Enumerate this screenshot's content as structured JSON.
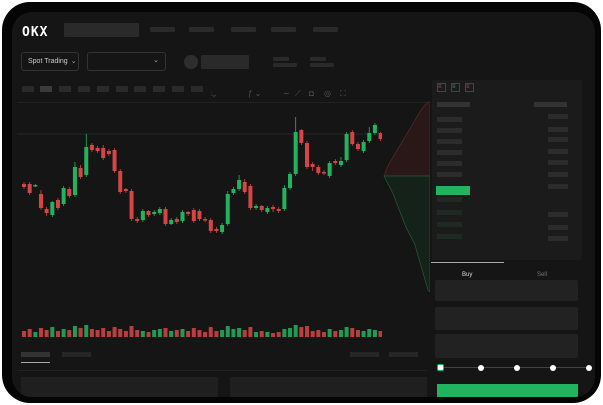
{
  "brand": {
    "logo": "OKX"
  },
  "header": {
    "market_selector": "Spot Trading",
    "market_selector_icon": "chevron-down-icon",
    "pair_selector_icon": "chevron-down-icon"
  },
  "toolbar": {
    "icons": [
      "line-tool-icon",
      "ruler-icon",
      "camera-icon",
      "settings-icon",
      "fullscreen-icon"
    ]
  },
  "orderbook": {
    "view_icons": [
      "both-sides-icon",
      "bids-only-icon",
      "asks-only-icon"
    ]
  },
  "trade": {
    "tabs": [
      {
        "label": "Buy",
        "active": true
      },
      {
        "label": "Sell",
        "active": false
      }
    ],
    "slider_percent": 0
  },
  "colors": {
    "up": "#22b35e",
    "down": "#d64545",
    "background": "#151515",
    "accent": "#22b35e"
  },
  "chart_data": {
    "type": "candlestick",
    "open": [
      118,
      118,
      116,
      108,
      93,
      87,
      102,
      98,
      113,
      107,
      134,
      127,
      157,
      154,
      154,
      151,
      152,
      131,
      113,
      111,
      83,
      82,
      91,
      88,
      89,
      93,
      78,
      83,
      81,
      90,
      92,
      91,
      83,
      82,
      73,
      70,
      78,
      109,
      113,
      120,
      116,
      94,
      96,
      90,
      95,
      93,
      93,
      114,
      128,
      172,
      159,
      138,
      135,
      130,
      126,
      141,
      137,
      142,
      170,
      158,
      151,
      161,
      169,
      169
    ],
    "close": [
      115,
      109,
      117,
      94,
      89,
      100,
      94,
      114,
      106,
      135,
      125,
      155,
      152,
      151,
      144,
      148,
      131,
      110,
      111,
      83,
      81,
      91,
      87,
      90,
      93,
      78,
      82,
      80,
      90,
      88,
      81,
      83,
      82,
      71,
      71,
      77,
      108,
      113,
      122,
      110,
      94,
      96,
      92,
      94,
      93,
      91,
      114,
      128,
      170,
      159,
      135,
      135,
      129,
      129,
      139,
      139,
      141,
      168,
      158,
      153,
      160,
      169,
      177,
      163
    ],
    "high": [
      120,
      120,
      118,
      112,
      95,
      101,
      104,
      116,
      115,
      140,
      137,
      168,
      159,
      156,
      157,
      153,
      154,
      133,
      114,
      113,
      85,
      93,
      92,
      92,
      95,
      95,
      84,
      85,
      92,
      91,
      94,
      93,
      85,
      84,
      75,
      79,
      111,
      115,
      127,
      123,
      118,
      98,
      97,
      96,
      97,
      95,
      117,
      130,
      185,
      173,
      161,
      140,
      137,
      132,
      141,
      143,
      145,
      170,
      172,
      160,
      162,
      175,
      179,
      170
    ],
    "low": [
      113,
      107,
      115,
      92,
      86,
      85,
      92,
      96,
      104,
      105,
      123,
      125,
      150,
      149,
      142,
      146,
      129,
      108,
      109,
      81,
      79,
      80,
      85,
      86,
      87,
      76,
      77,
      78,
      79,
      86,
      79,
      81,
      80,
      69,
      69,
      68,
      76,
      107,
      111,
      108,
      92,
      92,
      90,
      88,
      90,
      89,
      91,
      112,
      126,
      157,
      133,
      131,
      127,
      127,
      124,
      137,
      135,
      140,
      156,
      151,
      149,
      159,
      167,
      161
    ],
    "volume": [
      6,
      8,
      5,
      9,
      7,
      10,
      6,
      8,
      7,
      11,
      9,
      12,
      8,
      7,
      9,
      6,
      10,
      8,
      6,
      11,
      7,
      6,
      5,
      7,
      8,
      9,
      6,
      7,
      8,
      6,
      9,
      7,
      5,
      10,
      6,
      7,
      11,
      8,
      9,
      7,
      10,
      5,
      6,
      5,
      4,
      5,
      8,
      9,
      12,
      10,
      11,
      6,
      7,
      5,
      8,
      6,
      7,
      10,
      9,
      7,
      6,
      8,
      7,
      6
    ],
    "reference_line": 168,
    "depth": {
      "asks": [
        [
          0,
          0
        ],
        [
          0.1,
          0.15
        ],
        [
          0.25,
          0.3
        ],
        [
          0.4,
          0.45
        ],
        [
          0.55,
          0.6
        ],
        [
          0.7,
          0.75
        ],
        [
          0.85,
          0.9
        ],
        [
          1,
          1
        ]
      ],
      "bids": [
        [
          0,
          0
        ],
        [
          0.2,
          0.15
        ],
        [
          0.35,
          0.3
        ],
        [
          0.5,
          0.45
        ],
        [
          0.7,
          0.6
        ],
        [
          0.85,
          0.8
        ],
        [
          1,
          1
        ]
      ]
    }
  }
}
